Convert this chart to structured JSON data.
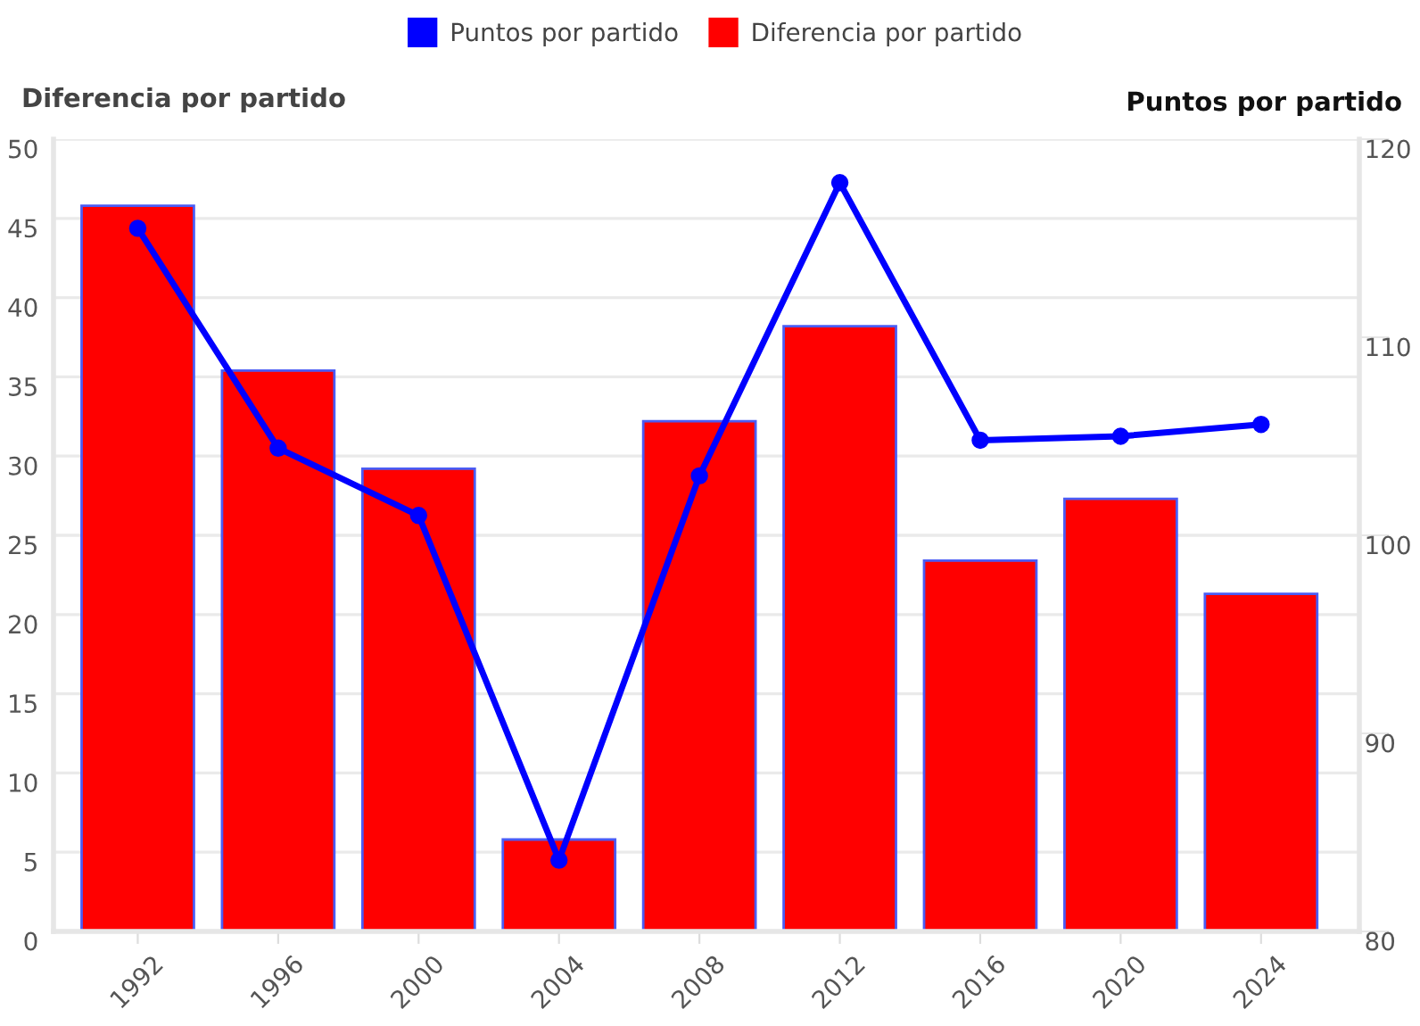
{
  "chart_data": {
    "type": "bar",
    "categories": [
      "1992",
      "1996",
      "2000",
      "2004",
      "2008",
      "2012",
      "2016",
      "2020",
      "2024"
    ],
    "series": [
      {
        "name": "Puntos por partido",
        "type": "line",
        "axis": "y2",
        "color": "#0000ff",
        "marker": "circle",
        "values": [
          115.5,
          104.4,
          101.0,
          83.6,
          103.0,
          117.8,
          104.8,
          105.0,
          105.6
        ]
      },
      {
        "name": "Diferencia por partido",
        "color": "#ff0000",
        "values": [
          45.8,
          35.4,
          29.2,
          5.8,
          32.2,
          38.2,
          23.4,
          27.3,
          21.3
        ]
      }
    ],
    "ylabel": "Diferencia por partido",
    "y2label": "Puntos por partido",
    "ylim": [
      0,
      50
    ],
    "yticks": [
      0,
      5,
      10,
      15,
      20,
      25,
      30,
      35,
      40,
      45,
      50
    ],
    "y2lim": [
      80,
      120
    ],
    "y2ticks": [
      80,
      90,
      100,
      110,
      120
    ],
    "grid": "y",
    "legend": "top"
  }
}
